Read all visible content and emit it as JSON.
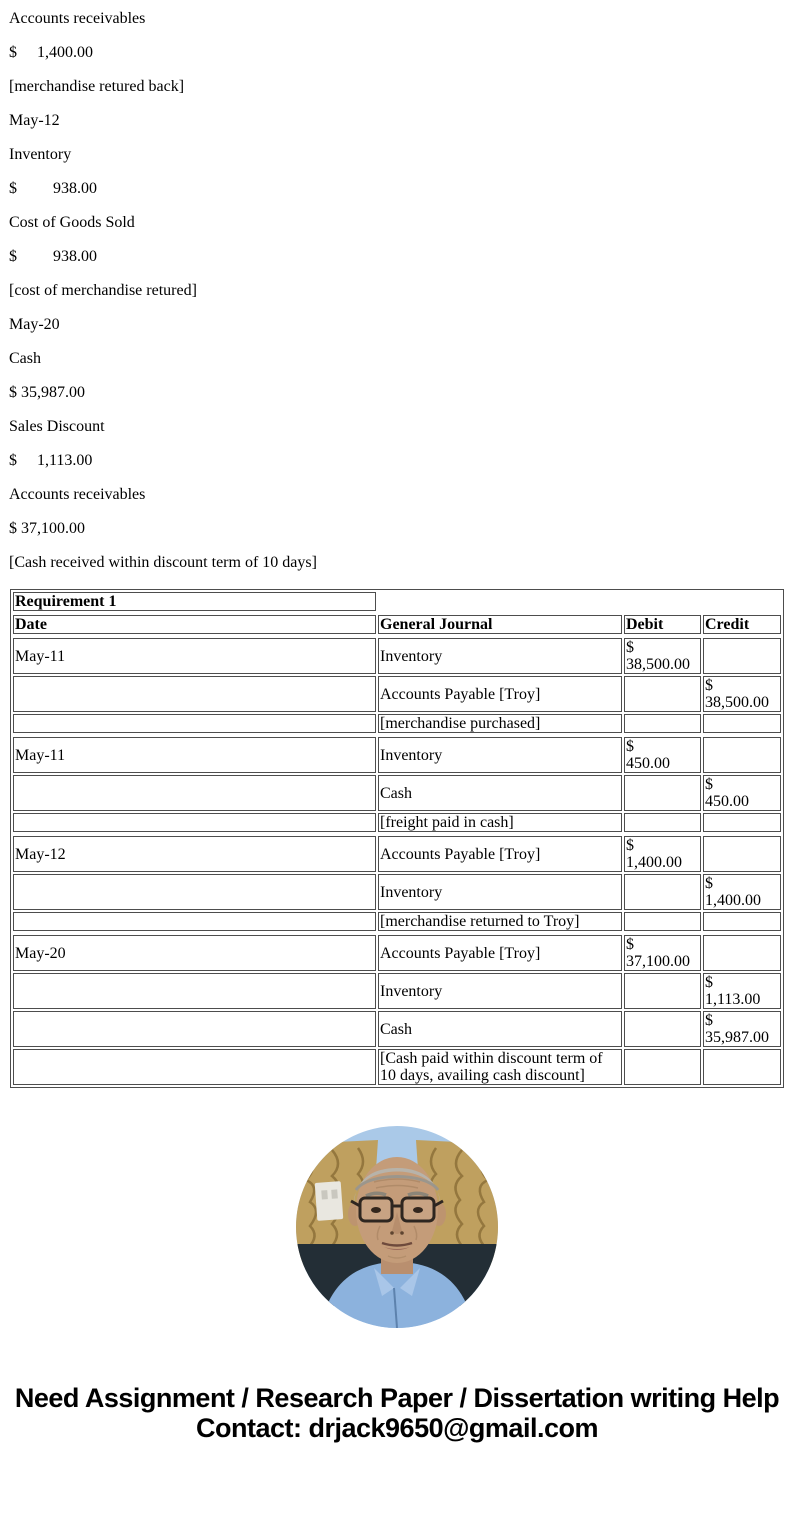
{
  "colors": {
    "background": "#ffffff",
    "text": "#000000",
    "table_border": "#4d4d4d",
    "avatar_sky": "#aac9e8",
    "avatar_curtain": "#bfa05f",
    "avatar_curtain_pattern": "#8a6d36",
    "avatar_dark_band": "#232e36",
    "avatar_shirt": "#8cb2dd",
    "avatar_skin": "#c49c79",
    "avatar_hair": "#b7b3aa"
  },
  "top_lines": [
    "Accounts receivables",
    "$     1,400.00",
    "[merchandise retured back]",
    "May-12",
    "Inventory",
    "$         938.00",
    "Cost of Goods Sold",
    "$         938.00",
    "[cost of merchandise retured]",
    "May-20",
    "Cash",
    "$ 35,987.00",
    "Sales Discount",
    "$     1,113.00",
    "Accounts receivables",
    "$ 37,100.00",
    "[Cash received within discount term of 10 days]"
  ],
  "journal_table": {
    "requirement_label": "Requirement 1",
    "columns": [
      "Date",
      "General Journal",
      "Debit",
      "Credit"
    ],
    "entries": [
      {
        "rows": [
          {
            "date": "May-11",
            "account": "Inventory",
            "debit": "$ 38,500.00",
            "credit": ""
          },
          {
            "date": "",
            "account": "Accounts Payable [Troy]",
            "debit": "",
            "credit": "$ 38,500.00"
          },
          {
            "date": "",
            "account": "[merchandise purchased]",
            "debit": "",
            "credit": ""
          }
        ]
      },
      {
        "rows": [
          {
            "date": "May-11",
            "account": "Inventory",
            "debit": "$ 450.00",
            "credit": ""
          },
          {
            "date": "",
            "account": "Cash",
            "debit": "",
            "credit": "$ 450.00"
          },
          {
            "date": "",
            "account": "[freight paid in cash]",
            "debit": "",
            "credit": ""
          }
        ]
      },
      {
        "rows": [
          {
            "date": "May-12",
            "account": "Accounts Payable [Troy]",
            "debit": "$ 1,400.00",
            "credit": ""
          },
          {
            "date": "",
            "account": "Inventory",
            "debit": "",
            "credit": "$ 1,400.00"
          },
          {
            "date": "",
            "account": "[merchandise returned to Troy]",
            "debit": "",
            "credit": ""
          }
        ]
      },
      {
        "rows": [
          {
            "date": "May-20",
            "account": "Accounts Payable [Troy]",
            "debit": "$ 37,100.00",
            "credit": ""
          },
          {
            "date": "",
            "account": "Inventory",
            "debit": "",
            "credit": "$ 1,113.00"
          },
          {
            "date": "",
            "account": "Cash",
            "debit": "",
            "credit": "$ 35,987.00"
          },
          {
            "date": "",
            "account": "[Cash paid within discount term of 10 days, availing cash discount]",
            "debit": "",
            "credit": ""
          }
        ]
      }
    ]
  },
  "avatar": {
    "alt": "circular photo of elderly man with gray hair and glasses wearing a blue shirt"
  },
  "footer": {
    "heading": "Need Assignment / Research Paper / Dissertation writing Help",
    "contact": "Contact: drjack9650@gmail.com"
  }
}
